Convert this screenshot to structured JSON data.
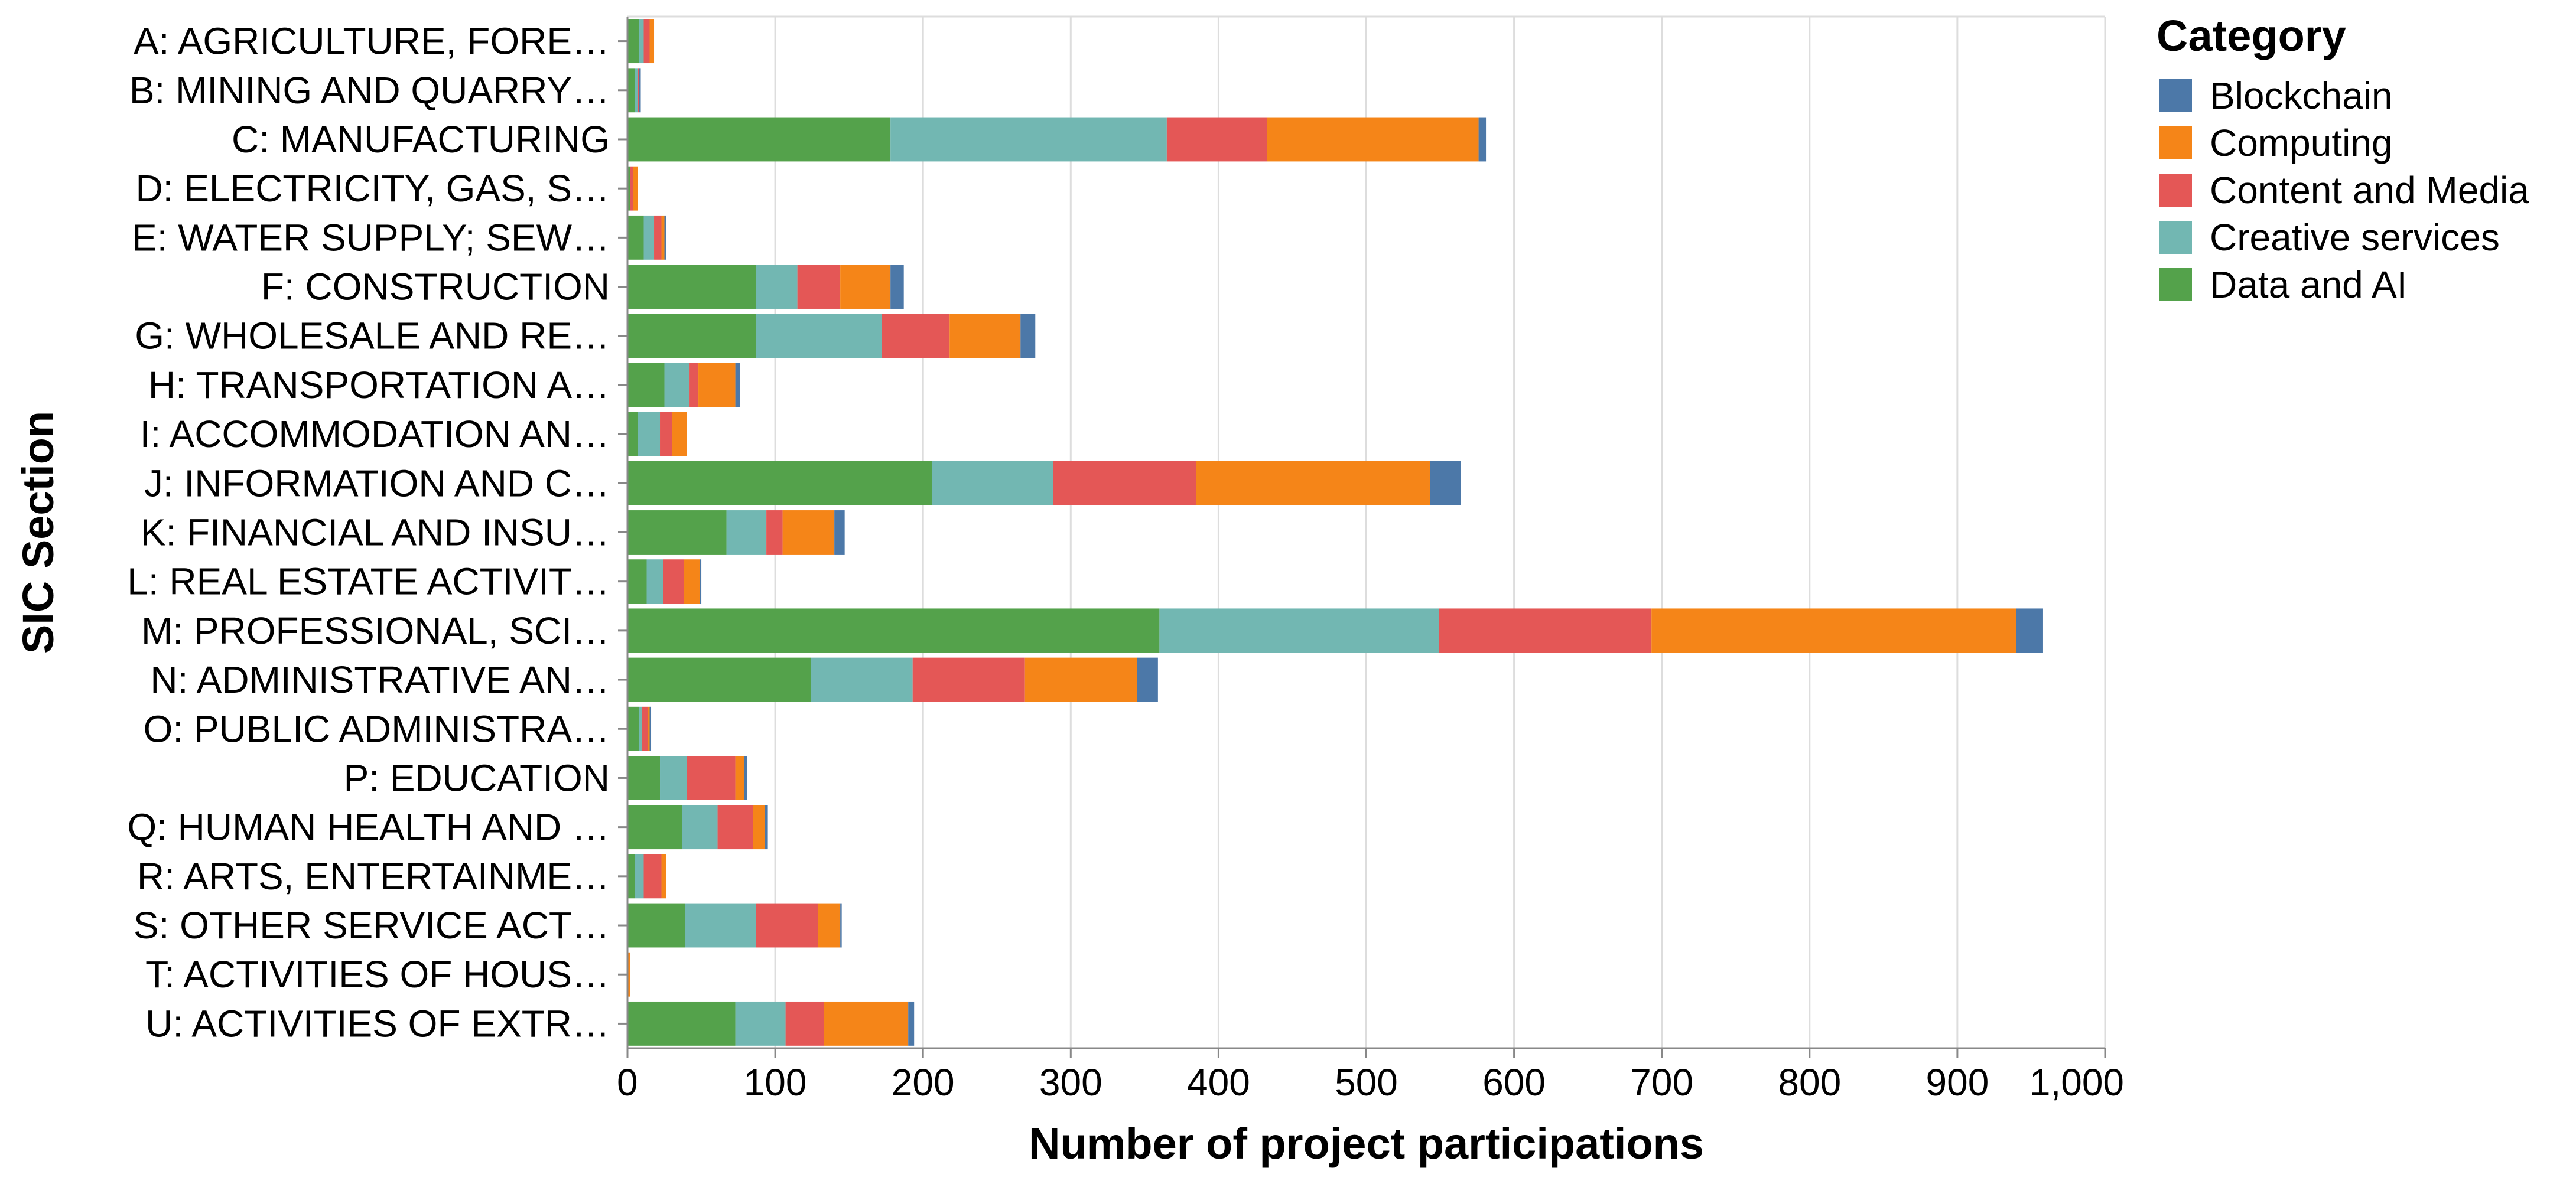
{
  "chart_data": {
    "type": "bar",
    "orientation": "horizontal",
    "stacked": true,
    "xlabel": "Number of project participations",
    "ylabel": "SIC Section",
    "xlim": [
      0,
      1000
    ],
    "xticks": [
      0,
      100,
      200,
      300,
      400,
      500,
      600,
      700,
      800,
      900,
      1000
    ],
    "xtick_labels": [
      "0",
      "100",
      "200",
      "300",
      "400",
      "500",
      "600",
      "700",
      "800",
      "900",
      "1,000"
    ],
    "grid": "vertical",
    "legend": {
      "title": "Category",
      "position": "top-right",
      "entries": [
        "Blockchain",
        "Computing",
        "Content and Media",
        "Creative services",
        "Data and AI"
      ]
    },
    "colors": {
      "Blockchain": "#4c78a8",
      "Computing": "#f58518",
      "Content and Media": "#e45756",
      "Creative services": "#72b7b2",
      "Data and AI": "#54a24b"
    },
    "categories": [
      "A: AGRICULTURE, FORE…",
      "B: MINING AND QUARRY…",
      "C: MANUFACTURING",
      "D: ELECTRICITY, GAS, S…",
      "E: WATER SUPPLY; SEW…",
      "F: CONSTRUCTION",
      "G: WHOLESALE AND RE…",
      "H: TRANSPORTATION A…",
      "I: ACCOMMODATION AN…",
      "J: INFORMATION AND C…",
      "K: FINANCIAL AND INSU…",
      "L: REAL ESTATE ACTIVIT…",
      "M: PROFESSIONAL, SCI…",
      "N: ADMINISTRATIVE AN…",
      "O: PUBLIC ADMINISTRA…",
      "P: EDUCATION",
      "Q: HUMAN HEALTH AND …",
      "R: ARTS, ENTERTAINME…",
      "S: OTHER SERVICE ACT…",
      "T: ACTIVITIES OF HOUS…",
      "U: ACTIVITIES OF EXTR…"
    ],
    "stack_order": [
      "Data and AI",
      "Creative services",
      "Content and Media",
      "Computing",
      "Blockchain"
    ],
    "series": [
      {
        "name": "Data and AI",
        "values": [
          8,
          5,
          178,
          2,
          11,
          87,
          87,
          25,
          7,
          206,
          67,
          13,
          360,
          124,
          8,
          22,
          37,
          5,
          39,
          0,
          73
        ]
      },
      {
        "name": "Creative services",
        "values": [
          3,
          2,
          187,
          0,
          7,
          28,
          85,
          17,
          15,
          82,
          27,
          11,
          189,
          69,
          2,
          18,
          24,
          6,
          48,
          0,
          34
        ]
      },
      {
        "name": "Content and Media",
        "values": [
          4,
          1,
          68,
          2,
          5,
          29,
          46,
          6,
          8,
          97,
          11,
          14,
          144,
          76,
          4,
          33,
          24,
          12,
          42,
          0,
          26
        ]
      },
      {
        "name": "Computing",
        "values": [
          3,
          0,
          143,
          3,
          2,
          34,
          48,
          25,
          10,
          158,
          35,
          11,
          247,
          76,
          1,
          6,
          8,
          3,
          15,
          2,
          57
        ]
      },
      {
        "name": "Blockchain",
        "values": [
          0,
          1,
          5,
          0,
          1,
          9,
          10,
          3,
          0,
          21,
          7,
          1,
          18,
          14,
          1,
          2,
          2,
          0,
          1,
          0,
          4
        ]
      }
    ]
  }
}
